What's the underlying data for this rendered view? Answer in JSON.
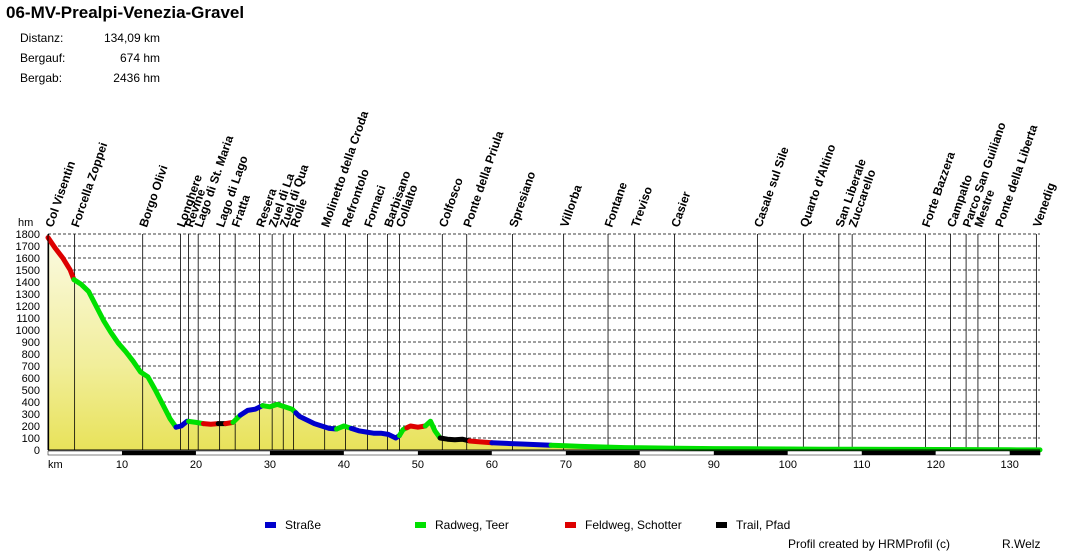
{
  "header": {
    "title": "06-MV-Prealpi-Venezia-Gravel",
    "stats": [
      {
        "label": "Distanz:",
        "value": "134,09 km"
      },
      {
        "label": "Bergauf:",
        "value": "674 hm"
      },
      {
        "label": "Bergab:",
        "value": "2436 hm"
      }
    ]
  },
  "legend": [
    {
      "label": "Straße",
      "color": "#0000cc"
    },
    {
      "label": "Radweg, Teer",
      "color": "#00e000"
    },
    {
      "label": "Feldweg, Schotter",
      "color": "#dd0000"
    },
    {
      "label": "Trail, Pfad",
      "color": "#000000"
    }
  ],
  "footer": {
    "credit": "Profil created by HRMProfil (c)",
    "author": "R.Welz"
  },
  "chart_data": {
    "type": "area",
    "ylabel": "hm",
    "xlabel": "km",
    "ylim": [
      0,
      1800
    ],
    "xlim": [
      0,
      134.09
    ],
    "yticks": [
      0,
      100,
      200,
      300,
      400,
      500,
      600,
      700,
      800,
      900,
      1000,
      1100,
      1200,
      1300,
      1400,
      1500,
      1600,
      1700,
      1800
    ],
    "xticks": [
      10,
      20,
      30,
      40,
      50,
      60,
      70,
      80,
      90,
      100,
      110,
      120,
      130
    ],
    "grid": true,
    "profile": [
      [
        0,
        1770
      ],
      [
        1,
        1680
      ],
      [
        2,
        1600
      ],
      [
        3,
        1500
      ],
      [
        3.5,
        1420
      ],
      [
        4.5,
        1380
      ],
      [
        5.5,
        1320
      ],
      [
        6.5,
        1200
      ],
      [
        7.5,
        1080
      ],
      [
        8.5,
        980
      ],
      [
        9.5,
        890
      ],
      [
        10.5,
        820
      ],
      [
        11.5,
        740
      ],
      [
        12.5,
        650
      ],
      [
        13.5,
        610
      ],
      [
        14.5,
        500
      ],
      [
        15.5,
        380
      ],
      [
        16.5,
        260
      ],
      [
        17.3,
        190
      ],
      [
        18,
        200
      ],
      [
        18.8,
        240
      ],
      [
        20,
        230
      ],
      [
        21,
        220
      ],
      [
        22,
        215
      ],
      [
        23,
        220
      ],
      [
        24,
        220
      ],
      [
        25,
        230
      ],
      [
        26,
        290
      ],
      [
        27,
        330
      ],
      [
        28,
        340
      ],
      [
        29,
        370
      ],
      [
        30,
        360
      ],
      [
        31,
        380
      ],
      [
        32,
        360
      ],
      [
        33,
        340
      ],
      [
        34,
        280
      ],
      [
        35,
        250
      ],
      [
        36,
        220
      ],
      [
        37,
        200
      ],
      [
        38,
        180
      ],
      [
        39,
        175
      ],
      [
        40,
        200
      ],
      [
        41,
        180
      ],
      [
        42,
        160
      ],
      [
        43,
        150
      ],
      [
        44,
        140
      ],
      [
        45,
        140
      ],
      [
        46,
        130
      ],
      [
        47,
        100
      ],
      [
        47.5,
        120
      ],
      [
        48,
        170
      ],
      [
        49,
        200
      ],
      [
        50,
        190
      ],
      [
        51,
        200
      ],
      [
        51.7,
        240
      ],
      [
        52.3,
        160
      ],
      [
        53,
        100
      ],
      [
        54,
        90
      ],
      [
        55,
        85
      ],
      [
        56,
        90
      ],
      [
        57,
        75
      ],
      [
        58,
        70
      ],
      [
        60,
        60
      ],
      [
        62,
        55
      ],
      [
        64,
        50
      ],
      [
        66,
        45
      ],
      [
        68,
        40
      ],
      [
        70,
        35
      ],
      [
        72,
        30
      ],
      [
        75,
        25
      ],
      [
        78,
        20
      ],
      [
        80,
        18
      ],
      [
        85,
        15
      ],
      [
        90,
        12
      ],
      [
        95,
        10
      ],
      [
        100,
        8
      ],
      [
        105,
        7
      ],
      [
        110,
        6
      ],
      [
        115,
        5
      ],
      [
        120,
        4
      ],
      [
        125,
        3
      ],
      [
        130,
        2
      ],
      [
        134.09,
        1
      ]
    ],
    "segments": [
      {
        "from": 0,
        "to": 3.5,
        "surface": "Feldweg, Schotter"
      },
      {
        "from": 3.5,
        "to": 17.3,
        "surface": "Radweg, Teer"
      },
      {
        "from": 17.3,
        "to": 19,
        "surface": "Straße"
      },
      {
        "from": 19,
        "to": 21,
        "surface": "Radweg, Teer"
      },
      {
        "from": 21,
        "to": 23,
        "surface": "Feldweg, Schotter"
      },
      {
        "from": 23,
        "to": 24,
        "surface": "Trail, Pfad"
      },
      {
        "from": 24,
        "to": 25,
        "surface": "Feldweg, Schotter"
      },
      {
        "from": 25,
        "to": 26,
        "surface": "Radweg, Teer"
      },
      {
        "from": 26,
        "to": 29,
        "surface": "Straße"
      },
      {
        "from": 29,
        "to": 33.5,
        "surface": "Radweg, Teer"
      },
      {
        "from": 33.5,
        "to": 39,
        "surface": "Straße"
      },
      {
        "from": 39,
        "to": 41,
        "surface": "Radweg, Teer"
      },
      {
        "from": 41,
        "to": 47.5,
        "surface": "Straße"
      },
      {
        "from": 47.5,
        "to": 48.5,
        "surface": "Radweg, Teer"
      },
      {
        "from": 48.5,
        "to": 51,
        "surface": "Feldweg, Schotter"
      },
      {
        "from": 51,
        "to": 53,
        "surface": "Radweg, Teer"
      },
      {
        "from": 53,
        "to": 57,
        "surface": "Trail, Pfad"
      },
      {
        "from": 57,
        "to": 60,
        "surface": "Feldweg, Schotter"
      },
      {
        "from": 60,
        "to": 68,
        "surface": "Straße"
      },
      {
        "from": 68,
        "to": 134.09,
        "surface": "Radweg, Teer"
      }
    ],
    "waypoints": [
      {
        "name": "Col Visentin",
        "km": 0.1
      },
      {
        "name": "Forcella Zoppei",
        "km": 3.6
      },
      {
        "name": "Borgo Olivi",
        "km": 12.8
      },
      {
        "name": "Longhere",
        "km": 17.9
      },
      {
        "name": "Revine",
        "km": 19.0
      },
      {
        "name": "Lago di St. Maria",
        "km": 20.3
      },
      {
        "name": "Lago di Lago",
        "km": 23.2
      },
      {
        "name": "Fratta",
        "km": 25.3
      },
      {
        "name": "Resera",
        "km": 28.6
      },
      {
        "name": "Zuel di La",
        "km": 30.3
      },
      {
        "name": "Zuel di Qua",
        "km": 31.8
      },
      {
        "name": "Rolle",
        "km": 33.2
      },
      {
        "name": "Molinetto della Croda",
        "km": 37.4
      },
      {
        "name": "Refrontolo",
        "km": 40.2
      },
      {
        "name": "Fornaci",
        "km": 43.2
      },
      {
        "name": "Barbisano",
        "km": 45.9
      },
      {
        "name": "Collalto",
        "km": 47.5
      },
      {
        "name": "Colfosco",
        "km": 53.3
      },
      {
        "name": "Ponte della Priula",
        "km": 56.6
      },
      {
        "name": "Spresiano",
        "km": 62.8
      },
      {
        "name": "Villorba",
        "km": 69.7
      },
      {
        "name": "Fontane",
        "km": 75.7
      },
      {
        "name": "Treviso",
        "km": 79.3
      },
      {
        "name": "Casier",
        "km": 84.7
      },
      {
        "name": "Casale sul Sile",
        "km": 95.9
      },
      {
        "name": "Quarto d'Altino",
        "km": 102.1
      },
      {
        "name": "San Liberale",
        "km": 106.9
      },
      {
        "name": "Zuccarello",
        "km": 108.7
      },
      {
        "name": "Forte Bazzera",
        "km": 118.6
      },
      {
        "name": "Campalto",
        "km": 122.0
      },
      {
        "name": "Parco San Guiliano",
        "km": 124.1
      },
      {
        "name": "Mestre",
        "km": 125.7
      },
      {
        "name": "Ponte della Liberta",
        "km": 128.5
      },
      {
        "name": "Venedig",
        "km": 133.6
      }
    ]
  }
}
